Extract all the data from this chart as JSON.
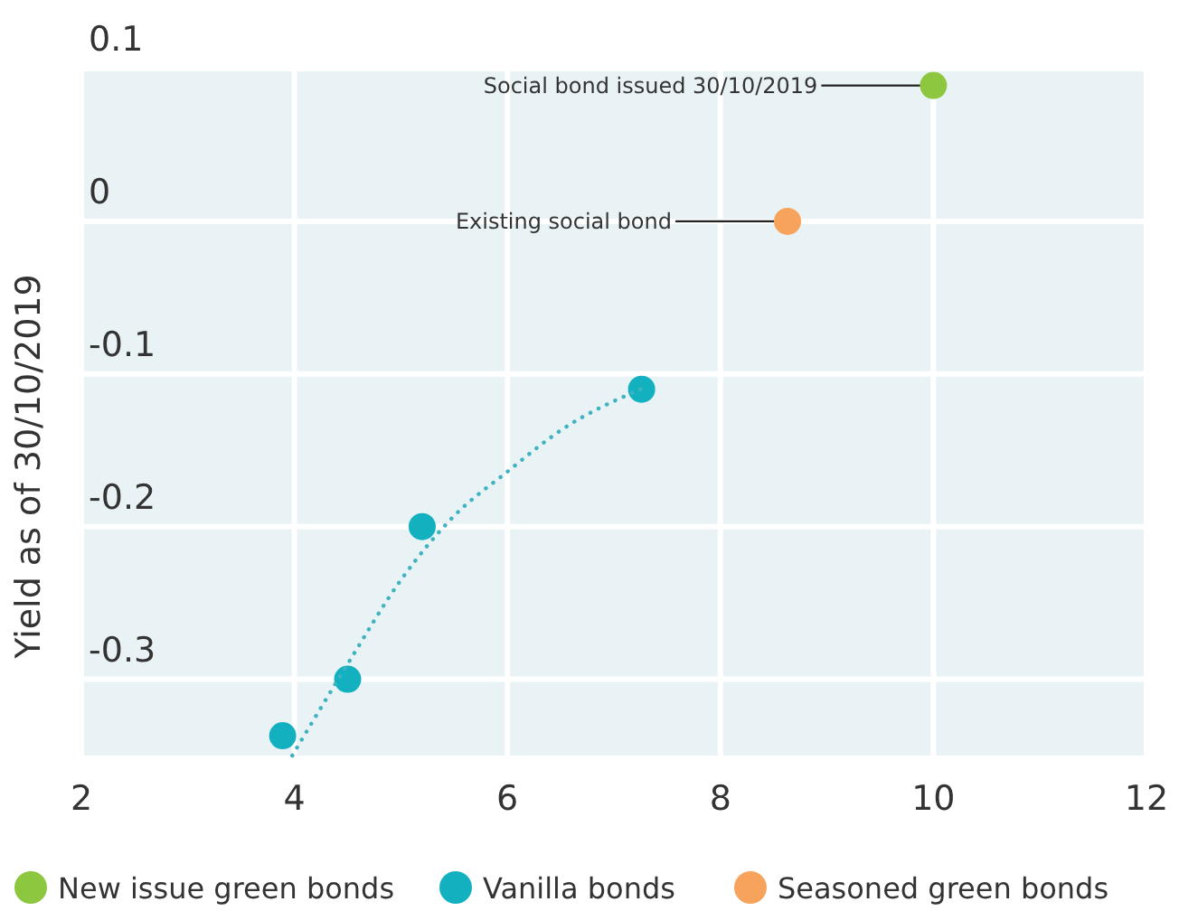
{
  "chart_data": {
    "type": "scatter",
    "ylabel": "Yield as of 30/10/2019",
    "xlim": [
      2,
      12
    ],
    "xticks": [
      2,
      4,
      6,
      8,
      10,
      12
    ],
    "ylim": [
      -0.35,
      0.1
    ],
    "yticks": [
      -0.3,
      -0.2,
      -0.1,
      0,
      0.1
    ],
    "grid": true,
    "legend": "bottom",
    "marker": "circle",
    "series": [
      {
        "name": "New issue green bonds",
        "color": "#8dc63f",
        "x": [
          10.0
        ],
        "values": [
          0.089
        ]
      },
      {
        "name": "Vanilla bonds",
        "color": "#13b1c0",
        "x": [
          3.89,
          4.5,
          5.2,
          7.26
        ],
        "values": [
          -0.337,
          -0.3,
          -0.2,
          -0.11
        ]
      },
      {
        "name": "Seasoned green bonds",
        "color": "#f7a35c",
        "x": [
          8.63
        ],
        "values": [
          0.0
        ]
      },
      {
        "type": "line",
        "color": "#3fb3c0",
        "line_style": "dotted",
        "marker": "none",
        "x": [
          3.98,
          4.5,
          5.0,
          5.5,
          6.0,
          6.5,
          7.25
        ],
        "values": [
          -0.35,
          -0.29,
          -0.235,
          -0.193,
          -0.164,
          -0.137,
          -0.11
        ]
      }
    ],
    "annotations": [
      {
        "text": "Social bond issued 30/10/2019",
        "x": 10.0,
        "y": 0.089
      },
      {
        "text": "Existing social bond",
        "x": 8.63,
        "y": 0.0
      }
    ]
  }
}
